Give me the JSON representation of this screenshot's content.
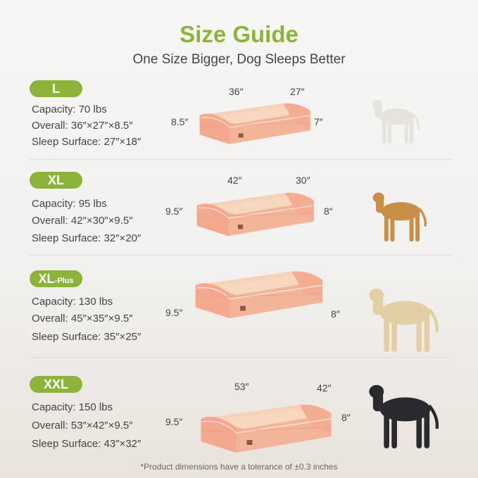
{
  "header": {
    "title": "Size Guide",
    "subtitle": "One Size Bigger, Dog Sleeps Better"
  },
  "accent_color": "#8db43a",
  "sizes": [
    {
      "label": "L",
      "capacity": "Capacity: 70 lbs",
      "overall": "Overall: 36″×27″×8.5″",
      "sleep": "Sleep Surface: 27″×18″",
      "length": "36″",
      "width": "27″",
      "height_back": "8.5″",
      "height_front": "7″",
      "dog": "bulldog"
    },
    {
      "label": "XL",
      "capacity": "Capacity: 95 lbs",
      "overall": "Overall: 42″×30″×9.5″",
      "sleep": "Sleep Surface: 32″×20″",
      "length": "42″",
      "width": "30″",
      "height_back": "9.5″",
      "height_front": "8″",
      "dog": "golden-retriever"
    },
    {
      "label": "XL",
      "label_suffix": "-Plus",
      "capacity": "Capacity: 130 lbs",
      "overall": "Overall: 45″×35″×9.5″",
      "sleep": "Sleep Surface: 35″×25″",
      "height_back": "9.5″",
      "height_front": "8″",
      "dog": "labrador"
    },
    {
      "label": "XXL",
      "capacity": "Capacity: 150 lbs",
      "overall": "Overall: 53″×42″×9.5″",
      "sleep": "Sleep Surface: 43″×32″",
      "length": "53″",
      "width": "42″",
      "height_back": "9.5″",
      "height_front": "8″",
      "dog": "doberman"
    }
  ],
  "footnote": "*Product dimensions have a tolerance of ±0.3 inches"
}
